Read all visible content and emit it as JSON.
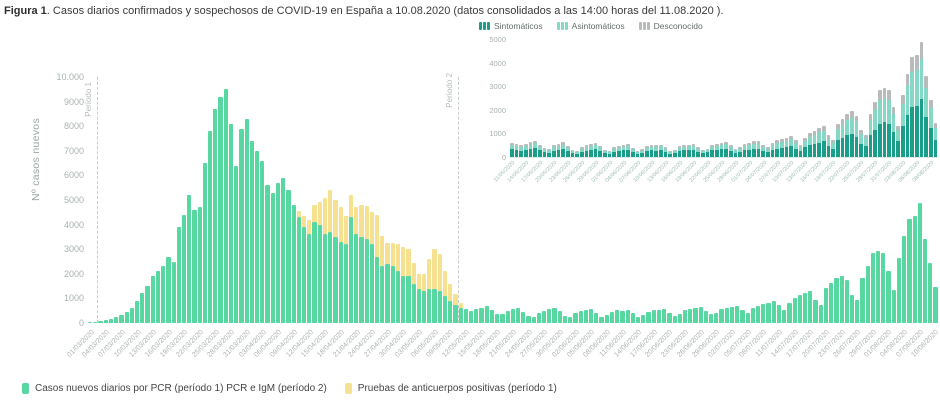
{
  "figure": {
    "title_bold": "Figura 1",
    "title_rest": ". Casos diarios confirmados y sospechosos de COVID-19 en España a 10.08.2020 (datos consolidados a las 14:00 horas del 11.08.2020 )."
  },
  "colors": {
    "pcr_green": "#58d7a1",
    "antibody_yellow": "#f5e18f",
    "symptomatic_teal": "#1a9e8a",
    "asymptomatic_teal": "#85d8c6",
    "unknown_gray": "#b7bcba",
    "axis_text": "#a9b3ad",
    "period_dashed_line": "#c7cec9"
  },
  "chart_data": [
    {
      "type": "bar",
      "title": "",
      "xlabel": "",
      "ylabel": "Nº casos nuevos",
      "ylim": [
        0,
        10000
      ],
      "grid": false,
      "yticks": [
        "0",
        "1000",
        "2000",
        "3000",
        "4000",
        "5000",
        "6000",
        "7000",
        "8000",
        "9000",
        "10.000"
      ],
      "start_date": "01/03/2020",
      "end_date": "10/08/2020",
      "xtick_step_days": 3,
      "xtick_labels": [
        "01/03/2020",
        "04/03/2020",
        "07/03/2020",
        "10/03/2020",
        "13/03/2020",
        "16/03/2020",
        "19/03/2020",
        "22/03/2020",
        "25/03/2020",
        "28/03/2020",
        "31/03/2020",
        "03/04/2020",
        "06/04/2020",
        "09/04/2020",
        "12/04/2020",
        "15/04/2020",
        "18/04/2020",
        "21/04/2020",
        "24/04/2020",
        "27/04/2020",
        "30/04/2020",
        "03/05/2020",
        "06/05/2020",
        "09/05/2020",
        "12/05/2020",
        "15/05/2020",
        "18/05/2020",
        "21/05/2020",
        "24/05/2020",
        "27/05/2020",
        "30/05/2020",
        "02/06/2020",
        "05/06/2020",
        "08/06/2020",
        "11/06/2020",
        "14/06/2020",
        "17/06/2020",
        "20/06/2020",
        "23/06/2020",
        "26/06/2020",
        "29/06/2020",
        "02/07/2020",
        "05/07/2020",
        "08/07/2020",
        "11/07/2020",
        "14/07/2020",
        "17/07/2020",
        "20/07/2020",
        "23/07/2020",
        "26/07/2020",
        "29/07/2020",
        "01/08/2020",
        "04/08/2020",
        "07/08/2020",
        "10/08/2020"
      ],
      "annotations": [
        "Período 1",
        "Período 2"
      ],
      "period2_line_date": "11/05/2020",
      "series": [
        {
          "name": "Casos nuevos diarios por PCR (período 1) PCR e IgM (período 2)",
          "color_key": "pcr_green",
          "start_index": 0,
          "values": [
            30,
            60,
            90,
            130,
            180,
            240,
            310,
            430,
            620,
            900,
            1200,
            1500,
            1900,
            2100,
            2300,
            2700,
            2500,
            3900,
            4400,
            5200,
            4600,
            4700,
            6500,
            7800,
            8700,
            9200,
            9500,
            8100,
            6400,
            7900,
            8300,
            7400,
            7000,
            6600,
            5600,
            5300,
            5700,
            5900,
            5400,
            4800,
            4300,
            3900,
            3600,
            4100,
            4000,
            3600,
            3700,
            3500,
            3300,
            3200,
            4300,
            3600,
            3500,
            3400,
            3200,
            2700,
            2300,
            2400,
            2300,
            2100,
            1900,
            1900,
            1600,
            1400,
            1300,
            1400,
            1400,
            1300,
            1100,
            900,
            750,
            600,
            550,
            500,
            550,
            620,
            680,
            520,
            380,
            350,
            500,
            560,
            620,
            460,
            300,
            260,
            420,
            500,
            560,
            600,
            480,
            300,
            260,
            420,
            470,
            520,
            560,
            400,
            260,
            320,
            460,
            510,
            490,
            530,
            410,
            260,
            310,
            460,
            510,
            530,
            560,
            410,
            300,
            360,
            510,
            560,
            610,
            650,
            500,
            350,
            420,
            560,
            610,
            660,
            700,
            520,
            410,
            610,
            710,
            760,
            810,
            910,
            720,
            520,
            810,
            1010,
            1120,
            1230,
            1320,
            920,
            720,
            1420,
            1620,
            1830,
            1930,
            1730,
            1130,
            930,
            1830,
            2330,
            2830,
            2930,
            2830,
            2130,
            1330,
            2630,
            3530,
            4230,
            4330,
            4890,
            3430,
            2430,
            1450
          ]
        },
        {
          "name": "Pruebas de anticuerpos positivas (período 1)",
          "color_key": "antibody_yellow",
          "stacked_on": "pcr_green",
          "start_index": 40,
          "start_date": "10/04/2020",
          "values": [
            250,
            450,
            600,
            700,
            900,
            1500,
            1700,
            1500,
            1400,
            1150,
            900,
            1100,
            1300,
            1350,
            1300,
            1700,
            1250,
            850,
            950,
            1100,
            1200,
            1100,
            850,
            600,
            700,
            1200,
            1600,
            1500,
            1000,
            700,
            420,
            220
          ]
        }
      ]
    },
    {
      "type": "stacked-bar",
      "title": "",
      "ylim": [
        0,
        5000
      ],
      "grid": false,
      "yticks": [
        "0",
        "1000",
        "2000",
        "3000",
        "4000",
        "5000"
      ],
      "start_date": "11/05/2020",
      "end_date": "10/08/2020",
      "xtick_step_days": 3,
      "xtick_labels": [
        "11/05/2020",
        "14/05/2020",
        "17/05/2020",
        "20/05/2020",
        "23/05/2020",
        "26/05/2020",
        "29/05/2020",
        "01/06/2020",
        "04/06/2020",
        "07/06/2020",
        "10/06/2020",
        "13/06/2020",
        "16/06/2020",
        "19/06/2020",
        "22/06/2020",
        "25/06/2020",
        "28/06/2020",
        "01/07/2020",
        "04/07/2020",
        "07/07/2020",
        "10/07/2020",
        "13/07/2020",
        "16/07/2020",
        "19/07/2020",
        "22/07/2020",
        "25/07/2020",
        "28/07/2020",
        "31/07/2020",
        "03/08/2020",
        "06/08/2020",
        "09/08/2020"
      ],
      "legend_position": "top",
      "series": [
        {
          "name": "Sintomáticos",
          "color_key": "symptomatic_teal",
          "values": [
            330,
            300,
            275,
            300,
            340,
            375,
            285,
            210,
            190,
            275,
            310,
            340,
            255,
            165,
            145,
            230,
            275,
            310,
            330,
            265,
            165,
            145,
            230,
            260,
            285,
            310,
            220,
            145,
            175,
            255,
            280,
            270,
            290,
            225,
            145,
            170,
            255,
            280,
            290,
            310,
            225,
            165,
            200,
            280,
            310,
            335,
            360,
            275,
            190,
            230,
            310,
            305,
            330,
            350,
            260,
            205,
            305,
            355,
            380,
            405,
            455,
            360,
            260,
            405,
            505,
            560,
            615,
            660,
            460,
            360,
            710,
            810,
            915,
            965,
            865,
            565,
            465,
            915,
            1165,
            1415,
            1465,
            1415,
            1065,
            665,
            1315,
            1765,
            2115,
            2165,
            2445,
            1715,
            1215,
            725
          ]
        },
        {
          "name": "Asintomáticos",
          "color_key": "asymptomatic_teal",
          "values": [
            180,
            165,
            150,
            165,
            185,
            205,
            155,
            115,
            105,
            150,
            170,
            185,
            140,
            90,
            80,
            125,
            150,
            170,
            180,
            145,
            90,
            80,
            125,
            140,
            155,
            170,
            120,
            80,
            95,
            140,
            155,
            145,
            160,
            125,
            80,
            95,
            140,
            155,
            160,
            170,
            125,
            90,
            110,
            155,
            170,
            185,
            195,
            150,
            105,
            125,
            170,
            215,
            230,
            245,
            180,
            145,
            215,
            250,
            265,
            285,
            320,
            250,
            180,
            285,
            355,
            390,
            430,
            460,
            320,
            250,
            495,
            565,
            640,
            675,
            605,
            395,
            325,
            640,
            815,
            990,
            1025,
            990,
            745,
            465,
            920,
            1235,
            1480,
            1515,
            1710,
            1200,
            850,
            510
          ]
        },
        {
          "name": "Desconocido",
          "color_key": "unknown_gray",
          "values": [
            90,
            85,
            75,
            85,
            95,
            100,
            80,
            55,
            55,
            75,
            80,
            95,
            65,
            45,
            35,
            65,
            75,
            80,
            90,
            70,
            45,
            35,
            65,
            70,
            80,
            80,
            60,
            35,
            50,
            65,
            75,
            75,
            80,
            60,
            35,
            45,
            65,
            75,
            80,
            80,
            60,
            45,
            50,
            75,
            80,
            90,
            95,
            75,
            55,
            65,
            80,
            90,
            100,
            105,
            80,
            60,
            90,
            105,
            115,
            120,
            135,
            110,
            80,
            120,
            150,
            170,
            185,
            200,
            140,
            110,
            215,
            245,
            275,
            290,
            260,
            170,
            140,
            275,
            350,
            425,
            440,
            425,
            320,
            200,
            395,
            530,
            635,
            650,
            735,
            515,
            365,
            215
          ]
        }
      ]
    }
  ]
}
